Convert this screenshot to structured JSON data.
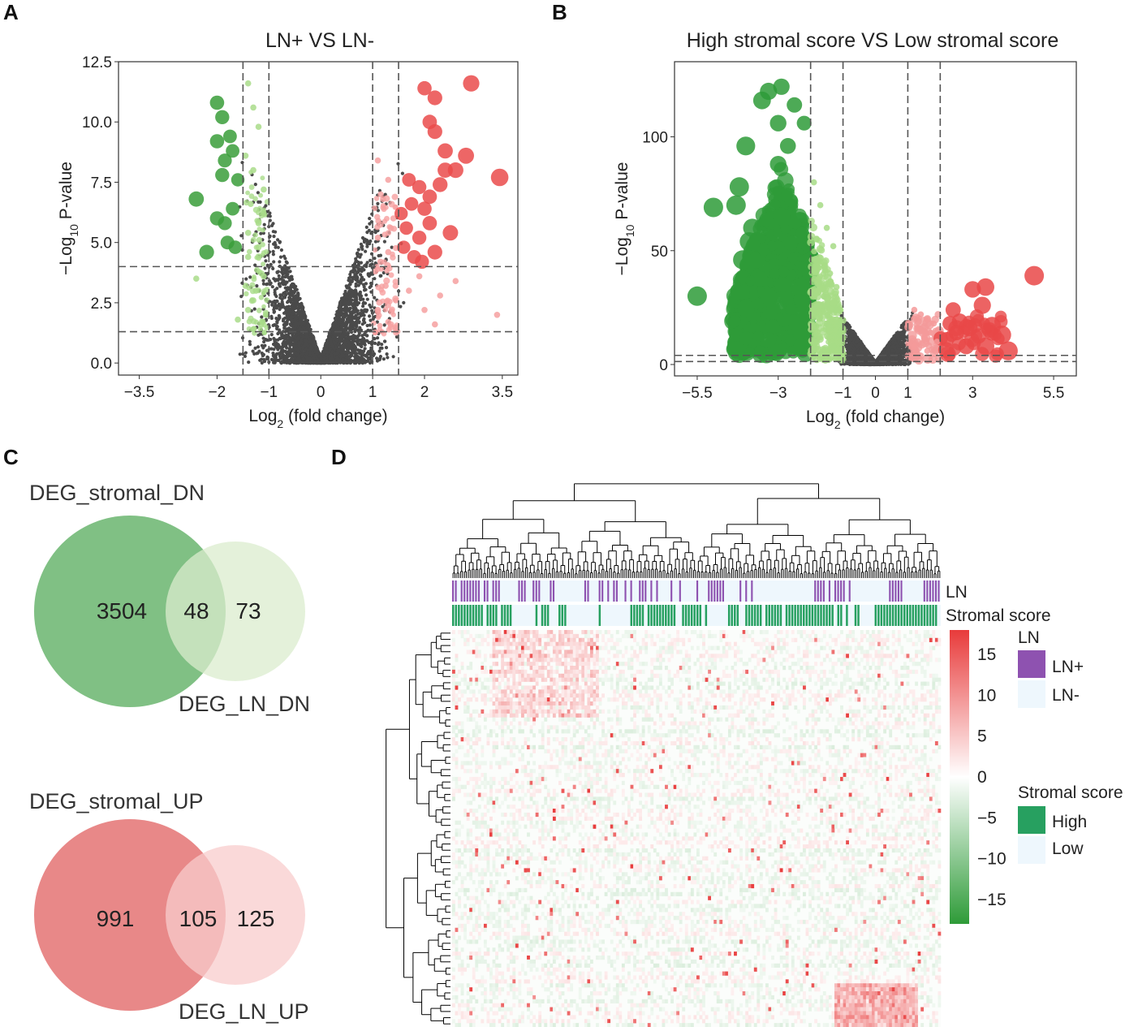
{
  "panels": {
    "A": "A",
    "B": "B",
    "C": "C",
    "D": "D"
  },
  "chart_data": [
    {
      "type": "scatter",
      "id": "A",
      "title": "LN+ VS LN-",
      "xlabel": "Log2 (fold change)",
      "ylabel": "-Log10 P-value",
      "xlim": [
        -3.9,
        3.8
      ],
      "ylim": [
        -0.5,
        12.5
      ],
      "xticks": [
        -3.5,
        -2,
        -1,
        0,
        1,
        2,
        3.5
      ],
      "xtick_labels": [
        "−3.5",
        "−2",
        "−1",
        "0",
        "1",
        "2",
        "3.5"
      ],
      "yticks": [
        0,
        2.5,
        5,
        7.5,
        10,
        12.5
      ],
      "ytick_labels": [
        "0.0",
        "2.5",
        "5.0",
        "7.5",
        "10.0",
        "12.5"
      ],
      "vlines": [
        -1.5,
        -1,
        1,
        1.5
      ],
      "hlines": [
        1.3,
        4.0
      ],
      "series": [
        {
          "name": "strong-down",
          "color": "#3a9e3a",
          "points": [
            [
              -2.4,
              6.8
            ],
            [
              -2.0,
              10.8
            ],
            [
              -1.9,
              10.2
            ],
            [
              -1.75,
              9.4
            ],
            [
              -1.85,
              8.4
            ],
            [
              -1.9,
              7.8
            ],
            [
              -1.7,
              8.8
            ],
            [
              -2.0,
              6.0
            ],
            [
              -1.8,
              5.0
            ],
            [
              -1.65,
              4.8
            ],
            [
              -2.2,
              4.6
            ],
            [
              -1.7,
              6.4
            ],
            [
              -2.0,
              9.2
            ],
            [
              -1.6,
              7.6
            ],
            [
              -1.85,
              5.8
            ]
          ]
        },
        {
          "name": "weak-down",
          "color": "#a9dc8a",
          "points": [
            [
              -1.4,
              11.6
            ],
            [
              -1.3,
              10.6
            ],
            [
              -1.2,
              9.8
            ],
            [
              -1.45,
              8.6
            ],
            [
              -1.3,
              8.0
            ],
            [
              -1.1,
              7.2
            ],
            [
              -1.35,
              6.6
            ],
            [
              -1.2,
              5.8
            ],
            [
              -1.4,
              4.4
            ],
            [
              -1.1,
              3.6
            ],
            [
              -1.25,
              3.0
            ],
            [
              -1.4,
              2.2
            ],
            [
              -1.15,
              1.6
            ],
            [
              -2.4,
              3.5
            ],
            [
              -1.6,
              1.8
            ],
            [
              -1.3,
              2.6
            ],
            [
              -1.05,
              2.0
            ],
            [
              -1.2,
              4.8
            ],
            [
              -1.4,
              5.4
            ],
            [
              -1.1,
              6.2
            ],
            [
              -1.45,
              3.2
            ],
            [
              -1.3,
              1.4
            ]
          ]
        },
        {
          "name": "weak-up",
          "color": "#f6a0a0",
          "points": [
            [
              1.1,
              8.4
            ],
            [
              1.3,
              7.6
            ],
            [
              1.2,
              6.8
            ],
            [
              1.4,
              6.0
            ],
            [
              1.1,
              5.2
            ],
            [
              1.3,
              4.6
            ],
            [
              1.05,
              3.8
            ],
            [
              1.25,
              3.2
            ],
            [
              1.45,
              2.6
            ],
            [
              1.1,
              2.2
            ],
            [
              1.3,
              1.7
            ],
            [
              1.45,
              1.4
            ],
            [
              1.9,
              3.6
            ],
            [
              2.3,
              2.8
            ],
            [
              2.6,
              3.4
            ],
            [
              3.4,
              2.0
            ],
            [
              2.0,
              2.2
            ],
            [
              1.7,
              3.0
            ],
            [
              2.2,
              1.6
            ],
            [
              1.15,
              4.2
            ],
            [
              1.35,
              5.6
            ]
          ]
        },
        {
          "name": "strong-up",
          "color": "#ea4b4b",
          "points": [
            [
              2.0,
              11.4
            ],
            [
              2.2,
              11.0
            ],
            [
              2.9,
              11.6
            ],
            [
              2.1,
              10.0
            ],
            [
              2.2,
              9.6
            ],
            [
              2.4,
              8.8
            ],
            [
              2.6,
              8.0
            ],
            [
              2.4,
              8.0
            ],
            [
              2.8,
              8.6
            ],
            [
              3.45,
              7.7
            ],
            [
              1.7,
              7.6
            ],
            [
              1.9,
              7.3
            ],
            [
              1.75,
              6.6
            ],
            [
              2.0,
              6.4
            ],
            [
              2.1,
              5.8
            ],
            [
              2.5,
              5.4
            ],
            [
              1.9,
              5.2
            ],
            [
              1.6,
              4.8
            ],
            [
              1.8,
              4.4
            ],
            [
              2.2,
              4.6
            ],
            [
              2.1,
              6.9
            ],
            [
              1.65,
              5.6
            ],
            [
              1.95,
              4.2
            ],
            [
              1.55,
              6.2
            ],
            [
              2.3,
              7.4
            ]
          ]
        }
      ],
      "null_cloud_color": "#4a4a4a"
    },
    {
      "type": "scatter",
      "id": "B",
      "title": "High stromal score VS Low stromal score",
      "xlabel": "Log2 (fold change)",
      "ylabel": "-Log10 P-value",
      "xlim": [
        -6.2,
        6.2
      ],
      "ylim": [
        -5,
        133
      ],
      "xticks": [
        -5.5,
        -3,
        -1,
        0,
        1,
        3,
        5.5
      ],
      "xtick_labels": [
        "−5.5",
        "−3",
        "−1",
        "0",
        "1",
        "3",
        "5.5"
      ],
      "yticks": [
        0,
        50,
        100
      ],
      "ytick_labels": [
        "0",
        "50",
        "100"
      ],
      "vlines": [
        -2,
        -1,
        1,
        2
      ],
      "hlines": [
        1.3,
        4.0
      ],
      "series": [
        {
          "name": "strong-down",
          "color": "#2e9b38",
          "points": [
            [
              -5.5,
              30
            ],
            [
              -5.0,
              69
            ],
            [
              -4.0,
              96
            ],
            [
              -3.5,
              116
            ],
            [
              -3.3,
              120
            ],
            [
              -2.9,
              122
            ],
            [
              -3.0,
              106
            ],
            [
              -2.5,
              114
            ],
            [
              -2.2,
              106
            ],
            [
              -4.2,
              78
            ],
            [
              -3.8,
              60
            ],
            [
              -4.1,
              46
            ],
            [
              -3.6,
              38
            ],
            [
              -3.3,
              30
            ],
            [
              -2.8,
              20
            ],
            [
              -2.6,
              12
            ],
            [
              -2.3,
              8
            ],
            [
              -3.0,
              88
            ],
            [
              -2.7,
              96
            ],
            [
              -4.3,
              70
            ],
            [
              -3.9,
              54
            ]
          ]
        },
        {
          "name": "weak-down",
          "color": "#a7dc86",
          "points": [
            [
              -1.9,
              80
            ],
            [
              -1.7,
              70
            ],
            [
              -1.5,
              60
            ],
            [
              -1.3,
              52
            ],
            [
              -1.8,
              46
            ],
            [
              -1.4,
              40
            ],
            [
              -1.2,
              34
            ],
            [
              -1.6,
              30
            ],
            [
              -1.2,
              24
            ],
            [
              -1.5,
              18
            ],
            [
              -1.1,
              14
            ],
            [
              -1.8,
              10
            ],
            [
              -1.3,
              8
            ]
          ]
        },
        {
          "name": "weak-up",
          "color": "#f49a9a",
          "points": [
            [
              1.2,
              24
            ],
            [
              1.4,
              22
            ],
            [
              1.6,
              20
            ],
            [
              1.8,
              18
            ],
            [
              1.3,
              16
            ],
            [
              1.7,
              14
            ],
            [
              1.5,
              12
            ],
            [
              1.9,
              10
            ],
            [
              1.2,
              8
            ],
            [
              1.6,
              6
            ]
          ]
        },
        {
          "name": "strong-up",
          "color": "#e94848",
          "points": [
            [
              4.9,
              39
            ],
            [
              3.4,
              34
            ],
            [
              3.0,
              33
            ],
            [
              3.3,
              26
            ],
            [
              2.4,
              24
            ],
            [
              2.6,
              19
            ],
            [
              2.9,
              16
            ],
            [
              3.6,
              17
            ],
            [
              3.9,
              13
            ],
            [
              2.2,
              11
            ],
            [
              2.8,
              8
            ],
            [
              3.4,
              8
            ],
            [
              4.1,
              6
            ],
            [
              2.3,
              18
            ],
            [
              2.5,
              14
            ]
          ]
        }
      ],
      "null_cloud_color": "#4a4a4a"
    },
    {
      "type": "venn",
      "id": "C1",
      "title": "DEG_stromal_DN",
      "set_a_label": "DEG_stromal_DN",
      "set_b_label": "DEG_LN_DN",
      "only_a": "3504",
      "both": "48",
      "only_b": "73",
      "color_a": "#6ab56f",
      "color_b": "#dbecce"
    },
    {
      "type": "venn",
      "id": "C2",
      "title": "DEG_stromal_UP",
      "set_a_label": "DEG_stromal_UP",
      "set_b_label": "DEG_LN_UP",
      "only_a": "991",
      "both": "105",
      "only_b": "125",
      "color_a": "#e57b7b",
      "color_b": "#f8cccc"
    },
    {
      "type": "heatmap",
      "id": "D",
      "annotation_rows": [
        "LN",
        "Stromal score"
      ],
      "colorbar_ticks": [
        15,
        10,
        5,
        0,
        -5,
        -10,
        -15
      ],
      "colorbar_tick_labels": [
        "15",
        "10",
        "5",
        "0",
        "−5",
        "−10",
        "−15"
      ],
      "colorbar_range": [
        -18,
        18
      ],
      "colorbar_colors": [
        "#2e9b38",
        "#ffffff",
        "#e83b3b"
      ],
      "legend": [
        {
          "title": "LN",
          "items": [
            {
              "label": "LN+",
              "color": "#8e52b0"
            },
            {
              "label": "LN-",
              "color": "#eef7fd"
            }
          ]
        },
        {
          "title": "Stromal score",
          "items": [
            {
              "label": "High",
              "color": "#27a060"
            },
            {
              "label": "Low",
              "color": "#eef7fd"
            }
          ]
        }
      ]
    }
  ]
}
